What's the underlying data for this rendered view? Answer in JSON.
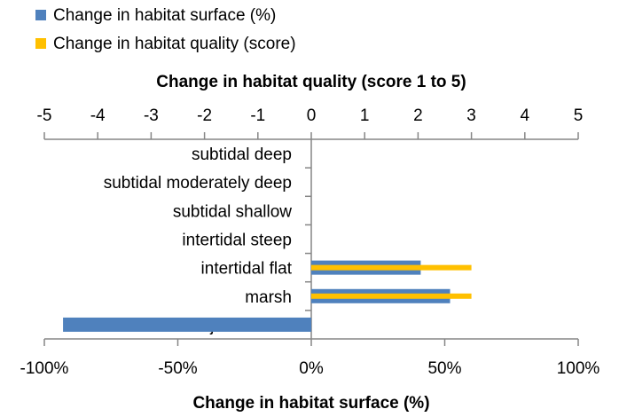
{
  "chart_data": {
    "type": "bar",
    "orientation": "horizontal",
    "categories": [
      "subtidal deep",
      "subtidal moderately deep",
      "subtidal shallow",
      "intertidal steep",
      "intertidal flat",
      "marsh",
      "adjacent land"
    ],
    "series": [
      {
        "name": "Change in habitat surface (%)",
        "axis": "bottom",
        "color": "#4F81BD",
        "values": [
          0,
          0,
          0,
          0,
          41,
          52,
          -93
        ]
      },
      {
        "name": "Change in habitat quality (score)",
        "axis": "top",
        "color": "#FFC000",
        "values": [
          0,
          0,
          0,
          0,
          3,
          3,
          0
        ]
      }
    ],
    "top_axis": {
      "title": "Change in habitat quality (score 1 to 5)",
      "range": [
        -5,
        5
      ],
      "ticks": [
        "-5",
        "-4",
        "-3",
        "-2",
        "-1",
        "0",
        "1",
        "2",
        "3",
        "4",
        "5"
      ]
    },
    "bottom_axis": {
      "title": "Change in habitat surface (%)",
      "range": [
        -100,
        100
      ],
      "ticks": [
        "-100%",
        "-50%",
        "0%",
        "50%",
        "100%"
      ]
    },
    "legend_position": "top-left",
    "grid": false
  }
}
